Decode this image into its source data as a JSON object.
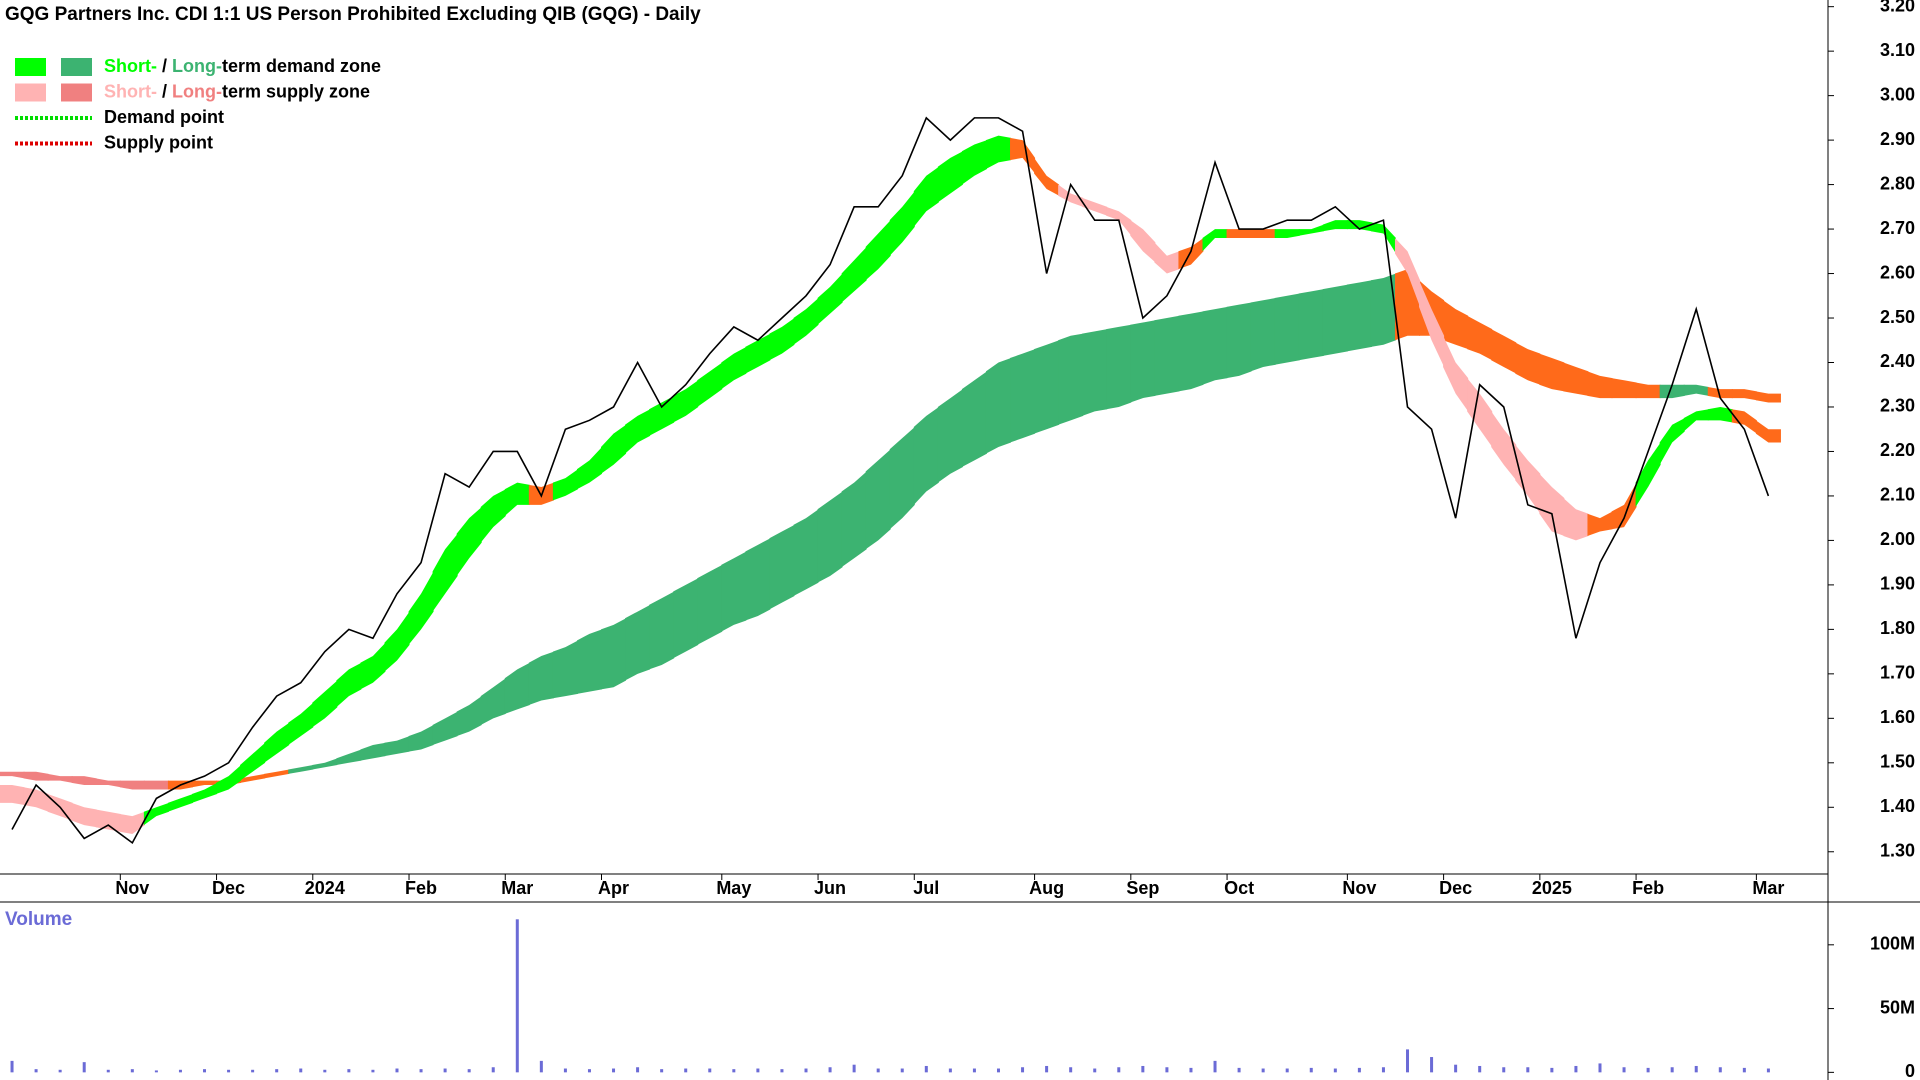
{
  "chart_data": {
    "type": "line",
    "title": "GQG Partners Inc. CDI 1:1 US Person Prohibited Excluding QIB (GQG) - Daily",
    "categories": [
      null,
      null,
      null,
      null,
      null,
      "Nov",
      null,
      null,
      null,
      "Dec",
      null,
      null,
      null,
      "2024",
      null,
      null,
      null,
      "Feb",
      null,
      null,
      null,
      "Mar",
      null,
      null,
      null,
      "Apr",
      null,
      null,
      null,
      null,
      "May",
      null,
      null,
      null,
      "Jun",
      null,
      null,
      null,
      "Jul",
      null,
      null,
      null,
      null,
      "Aug",
      null,
      null,
      null,
      "Sep",
      null,
      null,
      null,
      "Oct",
      null,
      null,
      null,
      null,
      "Nov",
      null,
      null,
      null,
      "Dec",
      null,
      null,
      null,
      "2025",
      null,
      null,
      null,
      "Feb",
      null,
      null,
      null,
      null,
      "Mar"
    ],
    "values": [
      1.35,
      1.45,
      1.4,
      1.33,
      1.36,
      1.32,
      1.42,
      1.45,
      1.47,
      1.5,
      1.58,
      1.65,
      1.68,
      1.75,
      1.8,
      1.78,
      1.88,
      1.95,
      2.15,
      2.12,
      2.2,
      2.2,
      2.1,
      2.25,
      2.27,
      2.3,
      2.4,
      2.3,
      2.35,
      2.42,
      2.48,
      2.45,
      2.5,
      2.55,
      2.62,
      2.75,
      2.75,
      2.82,
      2.95,
      2.9,
      2.95,
      2.95,
      2.92,
      2.6,
      2.8,
      2.72,
      2.72,
      2.5,
      2.55,
      2.65,
      2.85,
      2.7,
      2.7,
      2.72,
      2.72,
      2.75,
      2.7,
      2.72,
      2.3,
      2.25,
      2.05,
      2.35,
      2.3,
      2.08,
      2.06,
      1.78,
      1.95,
      2.05,
      2.2,
      2.35,
      2.52,
      2.32,
      2.25,
      2.1
    ],
    "color": "#000000",
    "zones": [
      {
        "upper": [
          1.48,
          1.48,
          1.47,
          1.47,
          1.46,
          1.46,
          1.46,
          1.46,
          1.46,
          1.46,
          1.47,
          1.48,
          1.49,
          1.5,
          1.52,
          1.54,
          1.55,
          1.57,
          1.6,
          1.63,
          1.67,
          1.71,
          1.74,
          1.76,
          1.79,
          1.81,
          1.84,
          1.87,
          1.9,
          1.93,
          1.96,
          1.99,
          2.02,
          2.05,
          2.09,
          2.13,
          2.18,
          2.23,
          2.28,
          2.32,
          2.36,
          2.4,
          2.42,
          2.44,
          2.46,
          2.47,
          2.48,
          2.49,
          2.5,
          2.51,
          2.52,
          2.53,
          2.54,
          2.55,
          2.56,
          2.57,
          2.58,
          2.59,
          2.61,
          2.56,
          2.52,
          2.49,
          2.46,
          2.43,
          2.41,
          2.39,
          2.37,
          2.36,
          2.35,
          2.35,
          2.35,
          2.34,
          2.34,
          2.33
        ],
        "lower": [
          1.47,
          1.46,
          1.46,
          1.45,
          1.45,
          1.44,
          1.44,
          1.44,
          1.45,
          1.45,
          1.46,
          1.47,
          1.48,
          1.49,
          1.5,
          1.51,
          1.52,
          1.53,
          1.55,
          1.57,
          1.6,
          1.62,
          1.64,
          1.65,
          1.66,
          1.67,
          1.7,
          1.72,
          1.75,
          1.78,
          1.81,
          1.83,
          1.86,
          1.89,
          1.92,
          1.96,
          2.0,
          2.05,
          2.11,
          2.15,
          2.18,
          2.21,
          2.23,
          2.25,
          2.27,
          2.29,
          2.3,
          2.32,
          2.33,
          2.34,
          2.36,
          2.37,
          2.39,
          2.4,
          2.41,
          2.42,
          2.43,
          2.44,
          2.46,
          2.46,
          2.44,
          2.42,
          2.39,
          2.36,
          2.34,
          2.33,
          2.32,
          2.32,
          2.32,
          2.32,
          2.33,
          2.32,
          2.32,
          2.31
        ],
        "colors": [
          "#f08080",
          "#f08080",
          "#f08080",
          "#f08080",
          "#f08080",
          "#f08080",
          "#f08080",
          "#ff6a1a",
          "#ff6a1a",
          "#ff6a1a",
          "#ff6a1a",
          "#ff6a1a",
          "#3cb371",
          "#3cb371",
          "#3cb371",
          "#3cb371",
          "#3cb371",
          "#3cb371",
          "#3cb371",
          "#3cb371",
          "#3cb371",
          "#3cb371",
          "#3cb371",
          "#3cb371",
          "#3cb371",
          "#3cb371",
          "#3cb371",
          "#3cb371",
          "#3cb371",
          "#3cb371",
          "#3cb371",
          "#3cb371",
          "#3cb371",
          "#3cb371",
          "#3cb371",
          "#3cb371",
          "#3cb371",
          "#3cb371",
          "#3cb371",
          "#3cb371",
          "#3cb371",
          "#3cb371",
          "#3cb371",
          "#3cb371",
          "#3cb371",
          "#3cb371",
          "#3cb371",
          "#3cb371",
          "#3cb371",
          "#3cb371",
          "#3cb371",
          "#3cb371",
          "#3cb371",
          "#3cb371",
          "#3cb371",
          "#3cb371",
          "#3cb371",
          "#3cb371",
          "#ff6a1a",
          "#ff6a1a",
          "#ff6a1a",
          "#ff6a1a",
          "#ff6a1a",
          "#ff6a1a",
          "#ff6a1a",
          "#ff6a1a",
          "#ff6a1a",
          "#ff6a1a",
          "#ff6a1a",
          "#3cb371",
          "#3cb371",
          "#ff6a1a",
          "#ff6a1a",
          "#ff6a1a"
        ]
      },
      {
        "upper": [
          1.45,
          1.44,
          1.42,
          1.4,
          1.39,
          1.38,
          1.4,
          1.42,
          1.44,
          1.47,
          1.52,
          1.57,
          1.61,
          1.66,
          1.71,
          1.74,
          1.8,
          1.88,
          1.98,
          2.05,
          2.1,
          2.13,
          2.12,
          2.14,
          2.18,
          2.24,
          2.28,
          2.31,
          2.34,
          2.38,
          2.42,
          2.45,
          2.48,
          2.52,
          2.57,
          2.63,
          2.69,
          2.75,
          2.82,
          2.86,
          2.89,
          2.91,
          2.9,
          2.82,
          2.78,
          2.76,
          2.74,
          2.7,
          2.64,
          2.66,
          2.7,
          2.7,
          2.7,
          2.7,
          2.7,
          2.72,
          2.72,
          2.71,
          2.65,
          2.52,
          2.4,
          2.33,
          2.25,
          2.18,
          2.12,
          2.07,
          2.05,
          2.08,
          2.18,
          2.26,
          2.29,
          2.3,
          2.29,
          2.25
        ],
        "lower": [
          1.41,
          1.4,
          1.38,
          1.36,
          1.35,
          1.34,
          1.38,
          1.4,
          1.42,
          1.44,
          1.48,
          1.52,
          1.56,
          1.6,
          1.65,
          1.68,
          1.73,
          1.8,
          1.88,
          1.96,
          2.03,
          2.08,
          2.08,
          2.1,
          2.13,
          2.17,
          2.22,
          2.25,
          2.28,
          2.32,
          2.36,
          2.39,
          2.42,
          2.46,
          2.51,
          2.56,
          2.61,
          2.67,
          2.74,
          2.78,
          2.82,
          2.85,
          2.86,
          2.79,
          2.76,
          2.74,
          2.72,
          2.65,
          2.6,
          2.62,
          2.68,
          2.68,
          2.68,
          2.68,
          2.69,
          2.7,
          2.7,
          2.69,
          2.6,
          2.45,
          2.33,
          2.25,
          2.17,
          2.1,
          2.02,
          2.0,
          2.02,
          2.03,
          2.12,
          2.22,
          2.27,
          2.27,
          2.26,
          2.22
        ],
        "colors": [
          "#ffb3b3",
          "#ffb3b3",
          "#ffb3b3",
          "#ffb3b3",
          "#ffb3b3",
          "#ffb3b3",
          "#00ff00",
          "#00ff00",
          "#00ff00",
          "#00ff00",
          "#00ff00",
          "#00ff00",
          "#00ff00",
          "#00ff00",
          "#00ff00",
          "#00ff00",
          "#00ff00",
          "#00ff00",
          "#00ff00",
          "#00ff00",
          "#00ff00",
          "#00ff00",
          "#ff6a1a",
          "#00ff00",
          "#00ff00",
          "#00ff00",
          "#00ff00",
          "#00ff00",
          "#00ff00",
          "#00ff00",
          "#00ff00",
          "#00ff00",
          "#00ff00",
          "#00ff00",
          "#00ff00",
          "#00ff00",
          "#00ff00",
          "#00ff00",
          "#00ff00",
          "#00ff00",
          "#00ff00",
          "#00ff00",
          "#ff6a1a",
          "#ff6a1a",
          "#ffb3b3",
          "#ffb3b3",
          "#ffb3b3",
          "#ffb3b3",
          "#ffb3b3",
          "#ff6a1a",
          "#00ff00",
          "#ff6a1a",
          "#ff6a1a",
          "#00ff00",
          "#00ff00",
          "#00ff00",
          "#00ff00",
          "#00ff00",
          "#ffb3b3",
          "#ffb3b3",
          "#ffb3b3",
          "#ffb3b3",
          "#ffb3b3",
          "#ffb3b3",
          "#ffb3b3",
          "#ffb3b3",
          "#ff6a1a",
          "#ff6a1a",
          "#00ff00",
          "#00ff00",
          "#00ff00",
          "#00ff00",
          "#ff6a1a",
          "#ff6a1a"
        ]
      }
    ],
    "ylim": [
      1.25,
      3.215
    ],
    "yticks": [
      {
        "value": 1.3,
        "label": "1.30"
      },
      {
        "value": 1.4,
        "label": "1.40"
      },
      {
        "value": 1.5,
        "label": "1.50"
      },
      {
        "value": 1.6,
        "label": "1.60"
      },
      {
        "value": 1.7,
        "label": "1.70"
      },
      {
        "value": 1.8,
        "label": "1.80"
      },
      {
        "value": 1.9,
        "label": "1.90"
      },
      {
        "value": 2.0,
        "label": "2.00"
      },
      {
        "value": 2.1,
        "label": "2.10"
      },
      {
        "value": 2.2,
        "label": "2.20"
      },
      {
        "value": 2.3,
        "label": "2.30"
      },
      {
        "value": 2.4,
        "label": "2.40"
      },
      {
        "value": 2.5,
        "label": "2.50"
      },
      {
        "value": 2.6,
        "label": "2.60"
      },
      {
        "value": 2.7,
        "label": "2.70"
      },
      {
        "value": 2.8,
        "label": "2.80"
      },
      {
        "value": 2.9,
        "label": "2.90"
      },
      {
        "value": 3.0,
        "label": "3.00"
      },
      {
        "value": 3.1,
        "label": "3.10"
      },
      {
        "value": 3.2,
        "label": "3.20"
      }
    ],
    "legend": [
      {
        "parts": [
          "Short-",
          " / ",
          "Long-",
          "term demand zone"
        ],
        "colors": [
          "#00ff00",
          "#3cb371"
        ]
      },
      {
        "parts": [
          "Short-",
          " / ",
          "Long-",
          "term supply zone"
        ],
        "colors": [
          "#ffb3b3",
          "#f08080"
        ]
      },
      {
        "label": "Demand point",
        "color": "#00dd00"
      },
      {
        "label": "Supply point",
        "color": "#dd0000"
      }
    ],
    "volume": {
      "label": "Volume",
      "color": "#6b6bd6",
      "values": [
        9000000,
        2500000,
        2000000,
        8000000,
        2000000,
        2500000,
        1500000,
        2000000,
        2500000,
        2000000,
        2000000,
        2500000,
        3000000,
        2000000,
        2500000,
        2000000,
        3000000,
        2500000,
        3000000,
        2500000,
        4000000,
        120000000,
        9000000,
        3000000,
        2500000,
        3000000,
        4000000,
        2500000,
        3000000,
        3000000,
        2500000,
        3000000,
        2500000,
        3000000,
        4000000,
        6000000,
        3000000,
        3000000,
        5000000,
        3000000,
        3000000,
        3000000,
        4000000,
        5000000,
        4000000,
        3000000,
        4000000,
        5000000,
        4000000,
        3500000,
        9000000,
        3500000,
        3000000,
        3000000,
        3500000,
        3000000,
        3500000,
        4000000,
        18000000,
        12000000,
        6000000,
        5000000,
        4000000,
        4000000,
        3500000,
        5000000,
        7000000,
        4000000,
        3500000,
        4000000,
        5000000,
        4000000,
        3500000,
        3000000
      ],
      "ylim": [
        -6000000,
        132000000
      ],
      "yticks": [
        0,
        {
          "value": 50000000,
          "label": "50M"
        },
        {
          "value": 100000000,
          "label": "100M"
        }
      ]
    }
  }
}
